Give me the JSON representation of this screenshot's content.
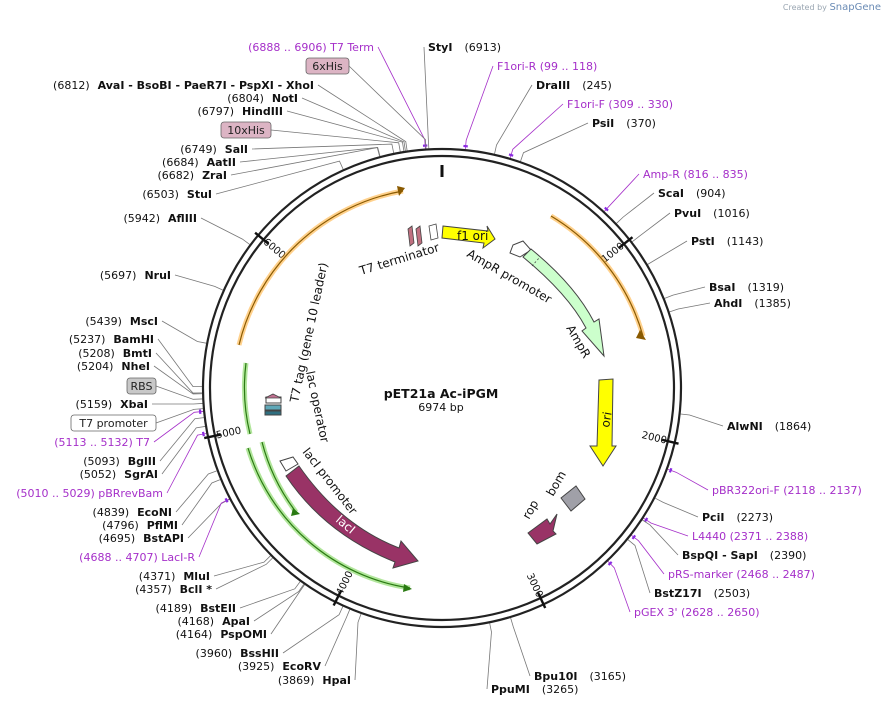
{
  "credit": {
    "prefix": "Created by",
    "brand": "SnapGene"
  },
  "title": "pET21a Ac-iPGM",
  "length": "6974 bp",
  "total_bp": 6974,
  "ticks": [
    {
      "bp": 1000,
      "label": "1000"
    },
    {
      "bp": 2000,
      "label": "2000"
    },
    {
      "bp": 3000,
      "label": "3000"
    },
    {
      "bp": 4000,
      "label": "4000"
    },
    {
      "bp": 5000,
      "label": "5000"
    },
    {
      "bp": 6000,
      "label": "6000"
    }
  ],
  "left_sites": [
    {
      "id": "t7term",
      "kind": "primer",
      "text": "(6888 .. 6906)  T7 Term",
      "bp": 6897
    },
    {
      "id": "6xhis",
      "kind": "box",
      "text": "6xHis",
      "bp": 6900
    },
    {
      "id": "avai",
      "kind": "site",
      "pos": "(6812)",
      "name": "AvaI   - BsoBI   - PaeR7I   - PspXI   - XhoI",
      "bp": 6812
    },
    {
      "id": "noti",
      "kind": "site",
      "pos": "(6804)",
      "name": "NotI",
      "bp": 6804
    },
    {
      "id": "hindiii",
      "kind": "site",
      "pos": "(6797)",
      "name": "HindIII",
      "bp": 6797
    },
    {
      "id": "10xhis",
      "kind": "box",
      "text": "10xHis",
      "bp": 6780
    },
    {
      "id": "sali",
      "kind": "site",
      "pos": "(6749)",
      "name": "SalI",
      "bp": 6749
    },
    {
      "id": "aatii",
      "kind": "site",
      "pos": "(6684)",
      "name": "AatII",
      "bp": 6684
    },
    {
      "id": "zrai",
      "kind": "site",
      "pos": "(6682)",
      "name": "ZraI",
      "bp": 6682
    },
    {
      "id": "stui",
      "kind": "site",
      "pos": "(6503)",
      "name": "StuI",
      "bp": 6503
    },
    {
      "id": "afliii",
      "kind": "site",
      "pos": "(5942)",
      "name": "AflIII",
      "bp": 5942
    },
    {
      "id": "nrui",
      "kind": "site",
      "pos": "(5697)",
      "name": "NruI",
      "bp": 5697
    },
    {
      "id": "msci",
      "kind": "site",
      "pos": "(5439)",
      "name": "MscI",
      "bp": 5439
    },
    {
      "id": "bamhi",
      "kind": "site",
      "pos": "(5237)",
      "name": "BamHI",
      "bp": 5237
    },
    {
      "id": "bmti",
      "kind": "site",
      "pos": "(5208)",
      "name": "BmtI",
      "bp": 5208
    },
    {
      "id": "nhei",
      "kind": "site",
      "pos": "(5204)",
      "name": "NheI",
      "bp": 5204
    },
    {
      "id": "rbs",
      "kind": "graybox",
      "text": "RBS",
      "bp": 5180
    },
    {
      "id": "xbai",
      "kind": "site",
      "pos": "(5159)",
      "name": "XbaI",
      "bp": 5159
    },
    {
      "id": "t7prom",
      "kind": "whitebox",
      "text": "T7 promoter",
      "bp": 5135
    },
    {
      "id": "t7",
      "kind": "primer",
      "text": "(5113 .. 5132)  T7",
      "bp": 5122
    },
    {
      "id": "bglii",
      "kind": "site",
      "pos": "(5093)",
      "name": "BglII",
      "bp": 5093
    },
    {
      "id": "sgrai",
      "kind": "site",
      "pos": "(5052)",
      "name": "SgrAI",
      "bp": 5052
    },
    {
      "id": "pbrrevbam",
      "kind": "primer",
      "text": "(5010 .. 5029)  pBRrevBam",
      "bp": 5019
    },
    {
      "id": "econi",
      "kind": "site",
      "pos": "(4839)",
      "name": "EcoNI",
      "bp": 4839
    },
    {
      "id": "pflmi",
      "kind": "site",
      "pos": "(4796)",
      "name": "PflMI",
      "bp": 4796
    },
    {
      "id": "bstapi",
      "kind": "site",
      "pos": "(4695)",
      "name": "BstAPI",
      "bp": 4695
    },
    {
      "id": "laci_r",
      "kind": "primer",
      "text": "(4688 .. 4707)  LacI-R",
      "bp": 4697
    },
    {
      "id": "mlui",
      "kind": "site",
      "pos": "(4371)",
      "name": "MluI",
      "bp": 4371
    },
    {
      "id": "bcli",
      "kind": "site",
      "pos": "(4357)",
      "name": "BclI *",
      "bp": 4357
    },
    {
      "id": "bsteii",
      "kind": "site",
      "pos": "(4189)",
      "name": "BstEII",
      "bp": 4189
    },
    {
      "id": "apai",
      "kind": "site",
      "pos": "(4168)",
      "name": "ApaI",
      "bp": 4168
    },
    {
      "id": "pspomi",
      "kind": "site",
      "pos": "(4164)",
      "name": "PspOMI",
      "bp": 4164
    },
    {
      "id": "bsshii",
      "kind": "site",
      "pos": "(3960)",
      "name": "BssHII",
      "bp": 3960
    },
    {
      "id": "ecorv",
      "kind": "site",
      "pos": "(3925)",
      "name": "EcoRV",
      "bp": 3925
    },
    {
      "id": "hpai",
      "kind": "site",
      "pos": "(3869)",
      "name": "HpaI",
      "bp": 3869
    }
  ],
  "right_sites": [
    {
      "id": "styi",
      "kind": "site",
      "name": "StyI",
      "pos": "(6913)",
      "bp": 6913
    },
    {
      "id": "f1ori_r",
      "kind": "primer",
      "text": "F1ori-R   (99 .. 118)",
      "bp": 108
    },
    {
      "id": "draiii",
      "kind": "site",
      "name": "DraIII",
      "pos": "(245)",
      "bp": 245
    },
    {
      "id": "f1ori_f",
      "kind": "primer",
      "text": "F1ori-F   (309 .. 330)",
      "bp": 320
    },
    {
      "id": "psii",
      "kind": "site",
      "name": "PsiI",
      "pos": "(370)",
      "bp": 370
    },
    {
      "id": "amp_r",
      "kind": "primer",
      "text": "Amp-R   (816 .. 835)",
      "bp": 825
    },
    {
      "id": "scai",
      "kind": "site",
      "name": "ScaI",
      "pos": "(904)",
      "bp": 904
    },
    {
      "id": "pvui",
      "kind": "site",
      "name": "PvuI",
      "pos": "(1016)",
      "bp": 1016
    },
    {
      "id": "psti",
      "kind": "site",
      "name": "PstI",
      "pos": "(1143)",
      "bp": 1143
    },
    {
      "id": "bsai",
      "kind": "site",
      "name": "BsaI",
      "pos": "(1319)",
      "bp": 1319
    },
    {
      "id": "ahdi",
      "kind": "site",
      "name": "AhdI",
      "pos": "(1385)",
      "bp": 1385
    },
    {
      "id": "alwni",
      "kind": "site",
      "name": "AlwNI",
      "pos": "(1864)",
      "bp": 1864
    },
    {
      "id": "pbr322",
      "kind": "primer",
      "text": "pBR322ori-F   (2118 .. 2137)",
      "bp": 2127
    },
    {
      "id": "pcii",
      "kind": "site",
      "name": "PciI",
      "pos": "(2273)",
      "bp": 2273
    },
    {
      "id": "l4440",
      "kind": "primer",
      "text": "L4440   (2371 .. 2388)",
      "bp": 2380
    },
    {
      "id": "bspqi",
      "kind": "site",
      "name": "BspQI  - SapI",
      "pos": "(2390)",
      "bp": 2390
    },
    {
      "id": "prs",
      "kind": "primer",
      "text": "pRS-marker   (2468 .. 2487)",
      "bp": 2477
    },
    {
      "id": "bstz17i",
      "kind": "site",
      "name": "BstZ17I",
      "pos": "(2503)",
      "bp": 2503
    },
    {
      "id": "pgex3",
      "kind": "primer",
      "text": "pGEX 3'   (2628 .. 2650)",
      "bp": 2639
    },
    {
      "id": "bpu10i",
      "kind": "site",
      "name": "Bpu10I",
      "pos": "(3165)",
      "bp": 3165
    },
    {
      "id": "ppumi",
      "kind": "site",
      "name": "PpuMI",
      "pos": "(3265)",
      "bp": 3265
    }
  ],
  "features": [
    {
      "id": "f1-ori",
      "label": "f1 ori",
      "color": "#ffff00"
    },
    {
      "id": "ampr-promoter",
      "label": "AmpR promoter",
      "color": "#ffffff"
    },
    {
      "id": "ampr",
      "label": "AmpR",
      "color": "#ccffcc"
    },
    {
      "id": "ori",
      "label": "ori",
      "color": "#ffff00"
    },
    {
      "id": "rop",
      "label": "rop",
      "color": "#993366"
    },
    {
      "id": "bom",
      "label": "bom",
      "color": "#a0a0a8"
    },
    {
      "id": "laci",
      "label": "lacI",
      "color": "#993366"
    },
    {
      "id": "laci-promoter",
      "label": "lacI promoter",
      "color": "#ffffff"
    },
    {
      "id": "lac-operator",
      "label": "lac operator",
      "color": "#ffffff"
    },
    {
      "id": "t7-tag",
      "label": "T7 tag (gene 10 leader)",
      "color": "#ffffff"
    },
    {
      "id": "t7-terminator",
      "label": "T7 terminator",
      "color": "#ffffff"
    }
  ]
}
